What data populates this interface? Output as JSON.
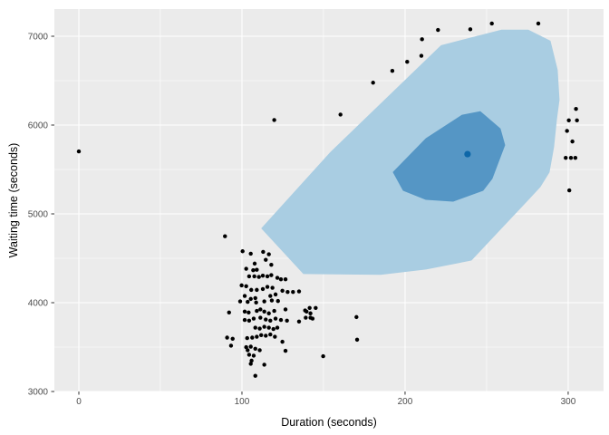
{
  "figure": {
    "outer_bg": "#FFFFFF",
    "panel_bg": "#EBEBEB",
    "grid_major_color": "#FFFFFF",
    "grid_minor_color": "#FFFFFF",
    "tick_mark_color": "#333333",
    "tick_label_color": "#4D4D4D",
    "axis_title_color": "#000000"
  },
  "chart_data": {
    "type": "scatter",
    "title": "",
    "xlabel": "Duration (seconds)",
    "ylabel": "Waiting time (seconds)",
    "legend": "none",
    "grid": "major+minor",
    "xlim": [
      -15,
      321.7
    ],
    "ylim": [
      3000,
      7306
    ],
    "x_ticks": [
      0,
      100,
      200,
      300
    ],
    "y_ticks": [
      3000,
      4000,
      5000,
      6000,
      7000
    ],
    "x_minor": [
      50,
      150,
      250
    ],
    "y_minor": [
      3500,
      4500,
      5500,
      6500
    ],
    "point_color": "#000000",
    "point_radius": 2.2,
    "points": [
      [
        0,
        5703
      ],
      [
        119.8,
        6057
      ],
      [
        160.4,
        6118
      ],
      [
        180.4,
        6477
      ],
      [
        192.2,
        6610
      ],
      [
        201.3,
        6712
      ],
      [
        210.0,
        6780
      ],
      [
        210.4,
        6966
      ],
      [
        220.2,
        7071
      ],
      [
        240.0,
        7078
      ],
      [
        253.2,
        7143
      ],
      [
        281.7,
        7143
      ],
      [
        304.8,
        6182
      ],
      [
        300.4,
        6053
      ],
      [
        305.4,
        6053
      ],
      [
        299.3,
        5934
      ],
      [
        302.6,
        5815
      ],
      [
        298.5,
        5631
      ],
      [
        301.7,
        5631
      ],
      [
        304.4,
        5631
      ],
      [
        300.7,
        5265
      ],
      [
        170.2,
        3838
      ],
      [
        170.6,
        3583
      ],
      [
        149.8,
        3397
      ],
      [
        89.6,
        4748
      ],
      [
        100.4,
        4579
      ],
      [
        105.4,
        4552
      ],
      [
        113.0,
        4572
      ],
      [
        116.5,
        4545
      ],
      [
        107.8,
        4440
      ],
      [
        114.6,
        4483
      ],
      [
        118.0,
        4427
      ],
      [
        102.6,
        4382
      ],
      [
        106.9,
        4365
      ],
      [
        109.1,
        4371
      ],
      [
        104.4,
        4297
      ],
      [
        107.6,
        4297
      ],
      [
        110.4,
        4290
      ],
      [
        112.8,
        4304
      ],
      [
        115.6,
        4297
      ],
      [
        118.0,
        4310
      ],
      [
        121.7,
        4280
      ],
      [
        123.9,
        4263
      ],
      [
        126.7,
        4263
      ],
      [
        99.8,
        4195
      ],
      [
        102.6,
        4185
      ],
      [
        105.7,
        4144
      ],
      [
        109.1,
        4144
      ],
      [
        112.8,
        4154
      ],
      [
        115.6,
        4178
      ],
      [
        118.7,
        4168
      ],
      [
        101.7,
        4076
      ],
      [
        105.4,
        4042
      ],
      [
        108.2,
        4052
      ],
      [
        117.4,
        4076
      ],
      [
        120.6,
        4093
      ],
      [
        124.8,
        4134
      ],
      [
        128.0,
        4121
      ],
      [
        131.3,
        4121
      ],
      [
        135.0,
        4127
      ],
      [
        118.3,
        4025
      ],
      [
        122.1,
        4019
      ],
      [
        98.9,
        4015
      ],
      [
        103.5,
        4009
      ],
      [
        108.7,
        4002
      ],
      [
        113.7,
        4015
      ],
      [
        92.1,
        3890
      ],
      [
        101.7,
        3900
      ],
      [
        104.1,
        3890
      ],
      [
        109.1,
        3907
      ],
      [
        111.3,
        3924
      ],
      [
        113.7,
        3900
      ],
      [
        116.5,
        3880
      ],
      [
        119.8,
        3907
      ],
      [
        126.7,
        3924
      ],
      [
        138.7,
        3913
      ],
      [
        141.5,
        3941
      ],
      [
        145.2,
        3941
      ],
      [
        139.6,
        3900
      ],
      [
        142.0,
        3880
      ],
      [
        139.1,
        3831
      ],
      [
        142.0,
        3831
      ],
      [
        101.7,
        3805
      ],
      [
        104.4,
        3798
      ],
      [
        107.2,
        3821
      ],
      [
        111.3,
        3831
      ],
      [
        114.6,
        3811
      ],
      [
        117.4,
        3798
      ],
      [
        120.6,
        3821
      ],
      [
        123.9,
        3805
      ],
      [
        127.6,
        3798
      ],
      [
        135.0,
        3788
      ],
      [
        143.3,
        3821
      ],
      [
        108.2,
        3719
      ],
      [
        110.9,
        3709
      ],
      [
        113.7,
        3729
      ],
      [
        116.5,
        3719
      ],
      [
        119.3,
        3703
      ],
      [
        121.7,
        3719
      ],
      [
        90.9,
        3607
      ],
      [
        94.3,
        3594
      ],
      [
        103.2,
        3601
      ],
      [
        106.3,
        3607
      ],
      [
        109.1,
        3617
      ],
      [
        111.8,
        3635
      ],
      [
        114.6,
        3628
      ],
      [
        117.4,
        3642
      ],
      [
        120.2,
        3617
      ],
      [
        124.8,
        3560
      ],
      [
        93.3,
        3516
      ],
      [
        102.6,
        3499
      ],
      [
        105.4,
        3505
      ],
      [
        108.2,
        3482
      ],
      [
        126.7,
        3458
      ],
      [
        103.5,
        3465
      ],
      [
        110.9,
        3465
      ],
      [
        104.4,
        3414
      ],
      [
        107.2,
        3404
      ],
      [
        105.9,
        3347
      ],
      [
        105.4,
        3312
      ],
      [
        113.7,
        3302
      ],
      [
        108.2,
        3177
      ]
    ],
    "regions": [
      {
        "name": "outer-density-region",
        "fill": "#A9CDE2",
        "vertices": [
          [
            112.2,
            4837
          ],
          [
            154.4,
            5693
          ],
          [
            222.2,
            6895
          ],
          [
            258.9,
            7068
          ],
          [
            275.6,
            7068
          ],
          [
            288.9,
            6946
          ],
          [
            293.3,
            6620
          ],
          [
            294.4,
            6284
          ],
          [
            292.8,
            6060
          ],
          [
            291.1,
            5754
          ],
          [
            288.3,
            5469
          ],
          [
            282.8,
            5306
          ],
          [
            275.6,
            5163
          ],
          [
            240.6,
            4480
          ],
          [
            212.8,
            4379
          ],
          [
            185.0,
            4318
          ],
          [
            137.8,
            4328
          ]
        ]
      },
      {
        "name": "inner-density-region",
        "fill": "#5596C5",
        "vertices": [
          [
            192.8,
            5469
          ],
          [
            212.8,
            5846
          ],
          [
            235.0,
            6111
          ],
          [
            246.1,
            6151
          ],
          [
            258.3,
            5958
          ],
          [
            261.1,
            5774
          ],
          [
            253.3,
            5397
          ],
          [
            247.8,
            5265
          ],
          [
            229.4,
            5143
          ],
          [
            212.8,
            5163
          ],
          [
            198.9,
            5265
          ]
        ]
      }
    ],
    "center_point": {
      "x": 238.3,
      "y": 5673,
      "color": "#0E67A8",
      "radius": 3.6
    }
  }
}
